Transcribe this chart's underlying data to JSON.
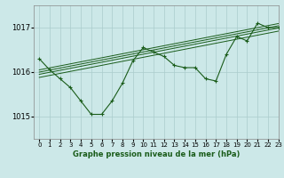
{
  "title": "Graphe pression niveau de la mer (hPa)",
  "bg_color": "#cce8e8",
  "grid_color": "#aacccc",
  "line_color": "#1a5c1a",
  "xlim": [
    -0.5,
    23
  ],
  "ylim": [
    1014.5,
    1017.5
  ],
  "yticks": [
    1015,
    1016,
    1017
  ],
  "xticks": [
    0,
    1,
    2,
    3,
    4,
    5,
    6,
    7,
    8,
    9,
    10,
    11,
    12,
    13,
    14,
    15,
    16,
    17,
    18,
    19,
    20,
    21,
    22,
    23
  ],
  "main_x": [
    0,
    1,
    2,
    3,
    4,
    5,
    6,
    7,
    8,
    9,
    10,
    11,
    12,
    13,
    14,
    15,
    16,
    17,
    18,
    19,
    20,
    21,
    22,
    23
  ],
  "main_y": [
    1016.3,
    1016.05,
    1015.85,
    1015.65,
    1015.35,
    1015.05,
    1015.05,
    1015.35,
    1015.75,
    1016.25,
    1016.55,
    1016.45,
    1016.35,
    1016.15,
    1016.1,
    1016.1,
    1015.85,
    1015.8,
    1016.4,
    1016.8,
    1016.7,
    1017.1,
    1017.0,
    1017.0
  ],
  "line1_x": [
    0,
    23
  ],
  "line1_y": [
    1015.88,
    1016.92
  ],
  "line2_x": [
    0,
    23
  ],
  "line2_y": [
    1015.95,
    1016.99
  ],
  "line3_x": [
    0,
    23
  ],
  "line3_y": [
    1016.0,
    1017.04
  ],
  "line4_x": [
    0,
    23
  ],
  "line4_y": [
    1016.05,
    1017.09
  ]
}
